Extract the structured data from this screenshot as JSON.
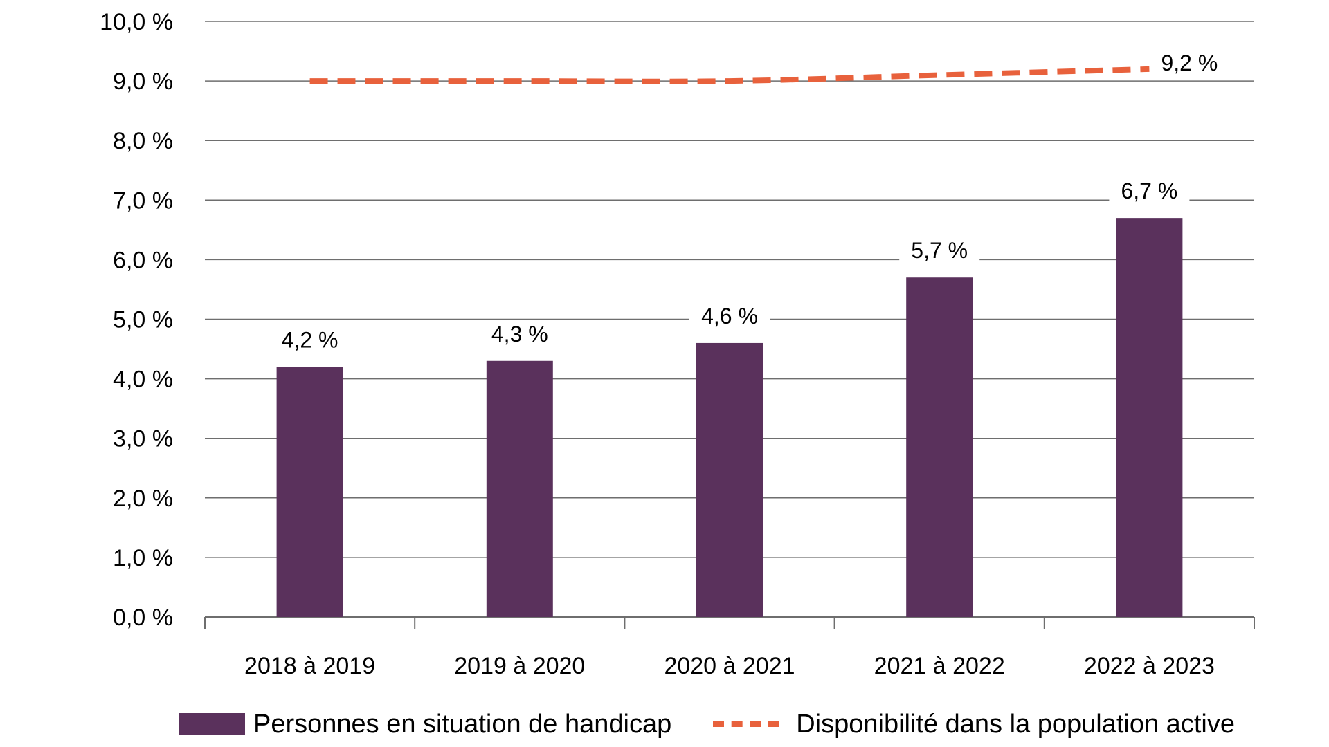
{
  "chart_data": {
    "type": "bar",
    "title": "",
    "xlabel": "",
    "ylabel": "",
    "ylim": [
      0,
      10
    ],
    "yticks": [
      "0,0 %",
      "1,0 %",
      "2,0 %",
      "3,0 %",
      "4,0 %",
      "5,0 %",
      "6,0 %",
      "7,0 %",
      "8,0 %",
      "9,0 %",
      "10,0 %"
    ],
    "grid": true,
    "legend_position": "bottom",
    "categories": [
      "2018 à 2019",
      "2019 à 2020",
      "2020 à 2021",
      "2021 à 2022",
      "2022 à 2023"
    ],
    "series": [
      {
        "name": "Personnes en situation de handicap",
        "type": "bar",
        "color": "#5a315c",
        "values": [
          4.2,
          4.3,
          4.6,
          5.7,
          6.7
        ],
        "labels": [
          "4,2 %",
          "4,3 %",
          "4,6 %",
          "5,7 %",
          "6,7 %"
        ]
      },
      {
        "name": "Disponibilité dans la population active",
        "type": "line",
        "style": "dashed",
        "color": "#e8613c",
        "values": [
          9.0,
          9.0,
          9.0,
          9.1,
          9.2
        ],
        "end_label": "9,2 %"
      }
    ]
  }
}
